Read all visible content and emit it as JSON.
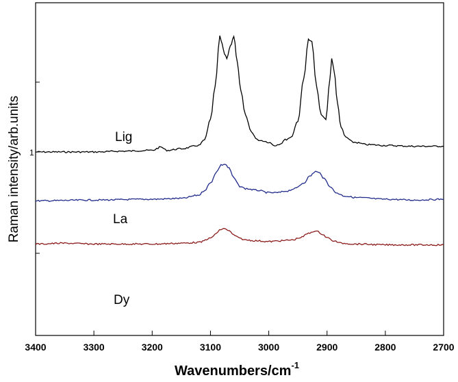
{
  "chart_data": {
    "type": "line",
    "xlabel": "Wavenumbers/cm",
    "xlabel_superscript": "-1",
    "ylabel": "Raman intensity/arb.units",
    "xlim": [
      3400,
      2700
    ],
    "x_reversed": true,
    "x_ticks": [
      "3400",
      "3300",
      "3200",
      "3100",
      "3000",
      "2900",
      "2800",
      "2700"
    ],
    "y_tick_label": "1",
    "grid": false,
    "series": [
      {
        "name": "Lig",
        "color": "#000000",
        "x": [
          3400,
          3300,
          3250,
          3200,
          3185,
          3175,
          3150,
          3120,
          3110,
          3100,
          3092,
          3084,
          3080,
          3076,
          3072,
          3066,
          3060,
          3054,
          3048,
          3040,
          3030,
          3020,
          3012,
          3000,
          2990,
          2980,
          2972,
          2962,
          2950,
          2940,
          2932,
          2926,
          2918,
          2910,
          2902,
          2895,
          2892,
          2888,
          2882,
          2876,
          2868,
          2855,
          2830,
          2800,
          2750,
          2700
        ],
        "values": [
          1.0,
          1.0,
          1.01,
          1.02,
          1.06,
          1.02,
          1.04,
          1.08,
          1.15,
          1.4,
          1.8,
          2.42,
          2.32,
          2.2,
          2.15,
          2.3,
          2.42,
          2.1,
          1.75,
          1.45,
          1.25,
          1.15,
          1.14,
          1.12,
          1.08,
          1.1,
          1.15,
          1.18,
          1.38,
          1.9,
          2.38,
          2.35,
          1.8,
          1.45,
          1.4,
          1.9,
          2.15,
          2.0,
          1.6,
          1.3,
          1.18,
          1.12,
          1.09,
          1.08,
          1.07,
          1.07
        ]
      },
      {
        "name": "La",
        "color": "#1f2a8a",
        "x": [
          3400,
          3300,
          3200,
          3150,
          3120,
          3110,
          3100,
          3090,
          3082,
          3075,
          3068,
          3060,
          3050,
          3040,
          3020,
          3000,
          2985,
          2970,
          2955,
          2940,
          2930,
          2920,
          2912,
          2905,
          2895,
          2885,
          2870,
          2850,
          2800,
          2750,
          2700
        ],
        "values": [
          0.4,
          0.41,
          0.42,
          0.43,
          0.47,
          0.53,
          0.62,
          0.75,
          0.84,
          0.85,
          0.8,
          0.68,
          0.58,
          0.55,
          0.53,
          0.5,
          0.5,
          0.52,
          0.55,
          0.62,
          0.7,
          0.76,
          0.74,
          0.67,
          0.58,
          0.5,
          0.46,
          0.44,
          0.42,
          0.41,
          0.42
        ]
      },
      {
        "name": "Dy",
        "color": "#8b1a1a",
        "x": [
          3400,
          3350,
          3300,
          3200,
          3150,
          3120,
          3100,
          3090,
          3082,
          3075,
          3068,
          3060,
          3050,
          3040,
          3020,
          3000,
          2980,
          2960,
          2945,
          2932,
          2922,
          2915,
          2908,
          2900,
          2890,
          2875,
          2850,
          2800,
          2750,
          2700
        ],
        "values": [
          -0.13,
          -0.12,
          -0.13,
          -0.13,
          -0.12,
          -0.11,
          -0.06,
          0.0,
          0.05,
          0.06,
          0.03,
          -0.02,
          -0.06,
          -0.08,
          -0.09,
          -0.1,
          -0.09,
          -0.08,
          -0.05,
          0.0,
          0.03,
          0.02,
          -0.01,
          -0.05,
          -0.09,
          -0.12,
          -0.13,
          -0.14,
          -0.14,
          -0.14
        ]
      }
    ]
  }
}
